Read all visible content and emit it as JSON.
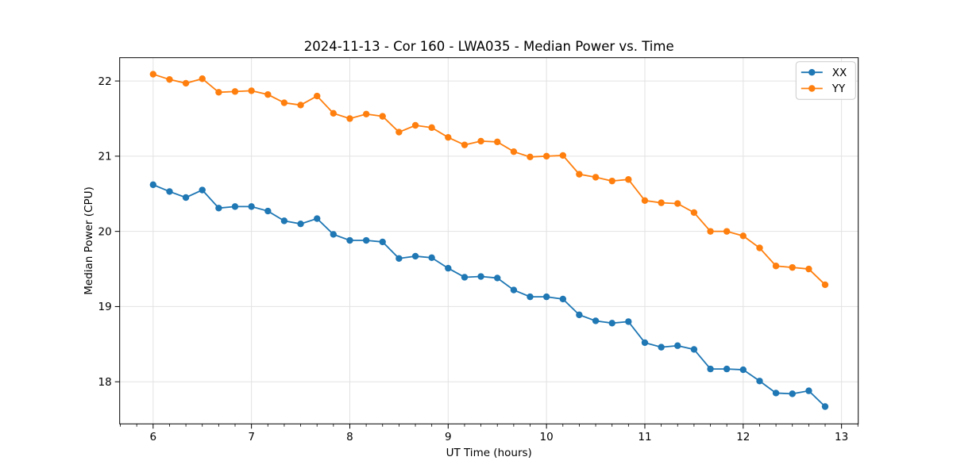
{
  "figure": {
    "background": "#ffffff",
    "plot_background": "#ffffff",
    "spine_color": "#000000",
    "grid_color": "#e2e2e2"
  },
  "chart_data": {
    "type": "line",
    "title": "2024-11-13 - Cor 160 - LWA035 - Median Power vs. Time",
    "xlabel": "UT Time (hours)",
    "ylabel": "Median Power (CPU)",
    "xlim": [
      5.66,
      13.17
    ],
    "ylim": [
      17.44,
      22.31
    ],
    "xticks": [
      6,
      7,
      8,
      9,
      10,
      11,
      12,
      13
    ],
    "yticks": [
      18,
      19,
      20,
      21,
      22
    ],
    "x_minor_tick_step": 0.1667,
    "grid": true,
    "legend_position": "upper right",
    "legend_labels": [
      "XX",
      "YY"
    ],
    "x": [
      6.0,
      6.167,
      6.333,
      6.5,
      6.667,
      6.833,
      7.0,
      7.167,
      7.333,
      7.5,
      7.667,
      7.833,
      8.0,
      8.167,
      8.333,
      8.5,
      8.667,
      8.833,
      9.0,
      9.167,
      9.333,
      9.5,
      9.667,
      9.833,
      10.0,
      10.167,
      10.333,
      10.5,
      10.667,
      10.833,
      11.0,
      11.167,
      11.333,
      11.5,
      11.667,
      11.833,
      12.0,
      12.167,
      12.333,
      12.5,
      12.667,
      12.833
    ],
    "series": [
      {
        "name": "XX",
        "color": "#1f77b4",
        "marker": "circle",
        "values": [
          20.62,
          20.53,
          20.45,
          20.55,
          20.31,
          20.33,
          20.33,
          20.27,
          20.14,
          20.1,
          20.17,
          19.96,
          19.88,
          19.88,
          19.86,
          19.64,
          19.67,
          19.65,
          19.51,
          19.39,
          19.4,
          19.38,
          19.22,
          19.13,
          19.13,
          19.1,
          18.89,
          18.81,
          18.78,
          18.8,
          18.52,
          18.46,
          18.48,
          18.43,
          18.17,
          18.17,
          18.16,
          18.01,
          17.85,
          17.84,
          17.88,
          17.67
        ]
      },
      {
        "name": "YY",
        "color": "#ff7f0e",
        "marker": "circle",
        "values": [
          22.09,
          22.02,
          21.97,
          22.03,
          21.85,
          21.86,
          21.87,
          21.82,
          21.71,
          21.68,
          21.8,
          21.57,
          21.5,
          21.56,
          21.53,
          21.32,
          21.41,
          21.38,
          21.25,
          21.15,
          21.2,
          21.19,
          21.06,
          20.99,
          21.0,
          21.01,
          20.76,
          20.72,
          20.67,
          20.69,
          20.41,
          20.38,
          20.37,
          20.25,
          20.0,
          20.0,
          19.94,
          19.78,
          19.54,
          19.52,
          19.5,
          19.29
        ]
      }
    ]
  }
}
